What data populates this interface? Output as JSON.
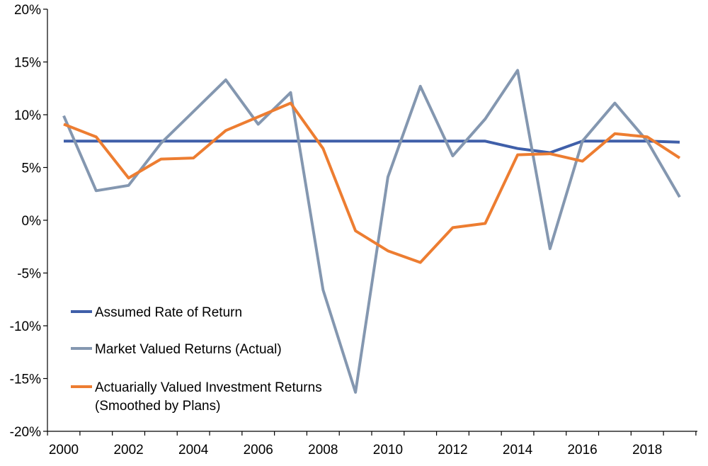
{
  "chart_data": {
    "type": "line",
    "title": "",
    "xlabel": "",
    "ylabel": "",
    "x": [
      2000,
      2001,
      2002,
      2003,
      2004,
      2005,
      2006,
      2007,
      2008,
      2009,
      2010,
      2011,
      2012,
      2013,
      2014,
      2015,
      2016,
      2017,
      2018,
      2019
    ],
    "x_tick_labels": [
      "2000",
      "2002",
      "2004",
      "2006",
      "2008",
      "2010",
      "2012",
      "2014",
      "2016",
      "2018"
    ],
    "x_tick_values": [
      2000,
      2002,
      2004,
      2006,
      2008,
      2010,
      2012,
      2014,
      2016,
      2018
    ],
    "y_tick_labels": [
      "20%",
      "15%",
      "10%",
      "5%",
      "0%",
      "-5%",
      "-10%",
      "-15%",
      "-20%"
    ],
    "y_tick_values": [
      20,
      15,
      10,
      5,
      0,
      -5,
      -10,
      -15,
      -20
    ],
    "ylim": [
      -20,
      20
    ],
    "xlim": [
      2000,
      2019
    ],
    "grid": false,
    "legend_position": "bottom-left",
    "series": [
      {
        "name": "Assumed Rate of Return",
        "color": "#3f5fa9",
        "values": [
          7.5,
          7.5,
          7.5,
          7.5,
          7.5,
          7.5,
          7.5,
          7.5,
          7.5,
          7.5,
          7.5,
          7.5,
          7.5,
          7.5,
          6.8,
          6.4,
          7.5,
          7.5,
          7.5,
          7.4
        ]
      },
      {
        "name": "Market Valued Returns (Actual)",
        "color": "#8497b0",
        "values": [
          9.9,
          2.8,
          3.3,
          7.3,
          10.3,
          13.3,
          9.1,
          12.1,
          -6.6,
          -16.3,
          4.1,
          12.7,
          6.1,
          9.6,
          14.2,
          -2.7,
          7.5,
          11.1,
          7.5,
          2.2
        ]
      },
      {
        "name": "Actuarially Valued Investment Returns (Smoothed by Plans)",
        "legend_lines": [
          "Actuarially Valued Investment Returns",
          "(Smoothed by Plans)"
        ],
        "color": "#ed7d31",
        "values": [
          9.1,
          7.9,
          4.0,
          5.8,
          5.9,
          8.5,
          9.8,
          11.1,
          6.8,
          -1.0,
          -2.9,
          -4.0,
          -0.7,
          -0.3,
          6.2,
          6.3,
          5.6,
          8.2,
          7.9,
          5.9
        ]
      }
    ]
  }
}
